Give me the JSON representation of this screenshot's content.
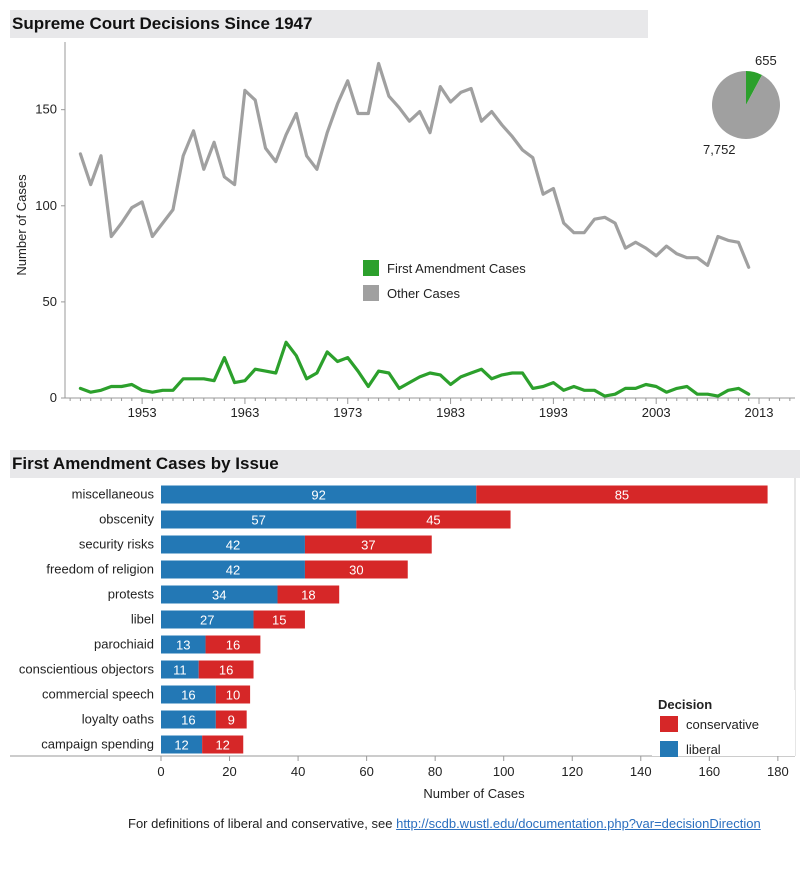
{
  "colors": {
    "first_amendment": "#2ca02c",
    "other": "#a0a0a0",
    "liberal": "#2378b5",
    "conservative": "#d62728"
  },
  "titles": {
    "top": "Supreme Court Decisions Since 1947",
    "bottom": "First Amendment Cases by Issue"
  },
  "footer": {
    "text": "For definitions of liberal and conservative, see ",
    "link": "http://scdb.wustl.edu/documentation.php?var=decisionDirection"
  },
  "chart_data": [
    {
      "type": "line",
      "title": "Supreme Court Decisions Since 1947",
      "ylabel": "Number of Cases",
      "xlabel": "",
      "ylim": [
        0,
        180
      ],
      "xlim": [
        1945.5,
        2016.5
      ],
      "xticks": [
        1953,
        1963,
        1973,
        1983,
        1993,
        2003,
        2013
      ],
      "yticks": [
        0,
        50,
        100,
        150
      ],
      "legend_placement": "center",
      "x": [
        1947,
        1948,
        1949,
        1950,
        1951,
        1952,
        1953,
        1954,
        1955,
        1956,
        1957,
        1958,
        1959,
        1960,
        1961,
        1962,
        1963,
        1964,
        1965,
        1966,
        1967,
        1968,
        1969,
        1970,
        1971,
        1972,
        1973,
        1974,
        1975,
        1976,
        1977,
        1978,
        1979,
        1980,
        1981,
        1982,
        1983,
        1984,
        1985,
        1986,
        1987,
        1988,
        1989,
        1990,
        1991,
        1992,
        1993,
        1994,
        1995,
        1996,
        1997,
        1998,
        1999,
        2000,
        2001,
        2002,
        2003,
        2004,
        2005,
        2006,
        2007,
        2008,
        2009,
        2010,
        2011,
        2012
      ],
      "series": [
        {
          "name": "Other Cases",
          "values": [
            127,
            111,
            126,
            84,
            91,
            99,
            102,
            84,
            91,
            98,
            126,
            139,
            119,
            133,
            115,
            111,
            160,
            155,
            130,
            123,
            137,
            148,
            126,
            119,
            138,
            153,
            165,
            148,
            148,
            174,
            157,
            151,
            144,
            149,
            138,
            162,
            154,
            159,
            161,
            144,
            149,
            142,
            136,
            129,
            125,
            106,
            109,
            91,
            86,
            86,
            93,
            94,
            91,
            78,
            81,
            78,
            74,
            79,
            75,
            73,
            73,
            69,
            84,
            82,
            81,
            68
          ]
        },
        {
          "name": "First Amendment Cases",
          "values": [
            5,
            3,
            4,
            6,
            6,
            7,
            4,
            3,
            4,
            4,
            10,
            10,
            10,
            9,
            21,
            8,
            9,
            15,
            14,
            13,
            29,
            22,
            10,
            13,
            24,
            19,
            21,
            14,
            6,
            14,
            13,
            5,
            8,
            11,
            13,
            12,
            7,
            11,
            13,
            15,
            10,
            12,
            13,
            13,
            5,
            6,
            8,
            4,
            6,
            4,
            4,
            1,
            2,
            5,
            5,
            7,
            6,
            3,
            5,
            6,
            2,
            2,
            1,
            4,
            5,
            2
          ]
        }
      ]
    },
    {
      "type": "pie",
      "values": [
        655,
        7752
      ],
      "labels": [
        "655",
        "7,752"
      ],
      "series_names": [
        "First Amendment Cases",
        "Other Cases"
      ]
    },
    {
      "type": "bar",
      "orientation": "horizontal",
      "stacked": true,
      "title": "First Amendment Cases by Issue",
      "xlabel": "Number of Cases",
      "xlim": [
        0,
        185
      ],
      "xticks": [
        0,
        20,
        40,
        60,
        80,
        100,
        120,
        140,
        160,
        180
      ],
      "legend_title": "Decision",
      "legend_placement": "bottom-right",
      "categories": [
        "miscellaneous",
        "obscenity",
        "security risks",
        "freedom of religion",
        "protests",
        "libel",
        "parochiaid",
        "conscientious objectors",
        "commercial speech",
        "loyalty oaths",
        "campaign spending"
      ],
      "series": [
        {
          "name": "liberal",
          "values": [
            92,
            57,
            42,
            42,
            34,
            27,
            13,
            11,
            16,
            16,
            12
          ]
        },
        {
          "name": "conservative",
          "values": [
            85,
            45,
            37,
            30,
            18,
            15,
            16,
            16,
            10,
            9,
            12
          ]
        }
      ]
    }
  ]
}
